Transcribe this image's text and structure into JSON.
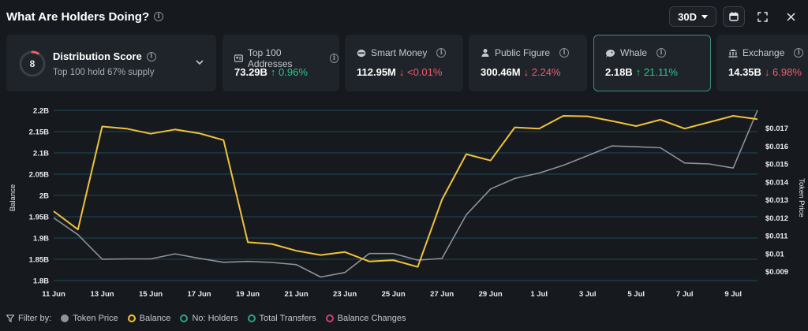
{
  "header": {
    "title": "What Are Holders Doing?"
  },
  "controls": {
    "range": "30D"
  },
  "distribution": {
    "score": "8",
    "score_fraction": 0.08,
    "title": "Distribution Score",
    "subtitle": "Top 100 hold 67% supply"
  },
  "cards": [
    {
      "label": "Top 100 Addresses",
      "value": "73.29B",
      "change": "↑ 0.96%",
      "direction": "up",
      "icon": "address-book-icon"
    },
    {
      "label": "Smart Money",
      "value": "112.95M",
      "change": "↓ <0.01%",
      "direction": "down",
      "icon": "brain-icon"
    },
    {
      "label": "Public Figure",
      "value": "300.46M",
      "change": "↓ 2.24%",
      "direction": "down",
      "icon": "person-icon"
    },
    {
      "label": "Whale",
      "value": "2.18B",
      "change": "↑ 21.11%",
      "direction": "up",
      "icon": "whale-icon",
      "active": true
    },
    {
      "label": "Exchange",
      "value": "14.35B",
      "change": "↓ 6.98%",
      "direction": "down",
      "icon": "bank-icon"
    }
  ],
  "chart_data": {
    "type": "line",
    "x": [
      "11 Jun",
      "12 Jun",
      "13 Jun",
      "14 Jun",
      "15 Jun",
      "16 Jun",
      "17 Jun",
      "18 Jun",
      "19 Jun",
      "20 Jun",
      "21 Jun",
      "22 Jun",
      "23 Jun",
      "24 Jun",
      "25 Jun",
      "26 Jun",
      "27 Jun",
      "28 Jun",
      "29 Jun",
      "30 Jun",
      "1 Jul",
      "2 Jul",
      "3 Jul",
      "4 Jul",
      "5 Jul",
      "6 Jul",
      "7 Jul",
      "8 Jul",
      "9 Jul",
      "10 Jul"
    ],
    "x_tick_labels": [
      "11 Jun",
      "13 Jun",
      "15 Jun",
      "17 Jun",
      "19 Jun",
      "21 Jun",
      "23 Jun",
      "25 Jun",
      "27 Jun",
      "29 Jun",
      "1 Jul",
      "3 Jul",
      "5 Jul",
      "7 Jul",
      "9 Jul"
    ],
    "series": [
      {
        "name": "Balance",
        "axis": "left",
        "color": "#f0c23b",
        "values": [
          1.963,
          1.92,
          2.162,
          2.157,
          2.145,
          2.155,
          2.146,
          2.13,
          1.89,
          1.886,
          1.87,
          1.86,
          1.867,
          1.845,
          1.848,
          1.832,
          1.99,
          2.097,
          2.082,
          2.16,
          2.157,
          2.187,
          2.186,
          2.175,
          2.163,
          2.178,
          2.157,
          2.172,
          2.187,
          2.179
        ]
      },
      {
        "name": "Token Price",
        "axis": "right",
        "color": "#8e9299",
        "values": [
          0.012,
          0.01106,
          0.00969,
          0.00971,
          0.00971,
          0.00999,
          0.00974,
          0.00952,
          0.00957,
          0.00951,
          0.00939,
          0.0087,
          0.00895,
          0.01001,
          0.01001,
          0.00964,
          0.00973,
          0.01217,
          0.01361,
          0.0142,
          0.0145,
          0.01493,
          0.01547,
          0.01601,
          0.01597,
          0.01591,
          0.01506,
          0.01501,
          0.01478,
          0.018
        ]
      }
    ],
    "ylabel": "Balance",
    "y2label": "Token Price",
    "ylim": [
      1.8,
      2.2
    ],
    "y_tick_labels": [
      "1.8B",
      "1.85B",
      "1.9B",
      "1.95B",
      "2B",
      "2.05B",
      "2.1B",
      "2.15B",
      "2.2B"
    ],
    "y2lim": [
      0.0085,
      0.018
    ],
    "y2_tick_labels": [
      "$0.009",
      "$0.01",
      "$0.011",
      "$0.012",
      "$0.013",
      "$0.014",
      "$0.015",
      "$0.016",
      "$0.017"
    ],
    "grid": true
  },
  "legend": {
    "filter_label": "Filter by:",
    "items": [
      {
        "label": "Token Price",
        "color": "#8e9299",
        "filled": true
      },
      {
        "label": "Balance",
        "color": "#f0c23b",
        "filled": false
      },
      {
        "label": "No: Holders",
        "color": "#2f9e8a",
        "filled": false
      },
      {
        "label": "Total Transfers",
        "color": "#2f9e8a",
        "filled": false
      },
      {
        "label": "Balance Changes",
        "color": "#c9407a",
        "filled": false
      }
    ]
  }
}
